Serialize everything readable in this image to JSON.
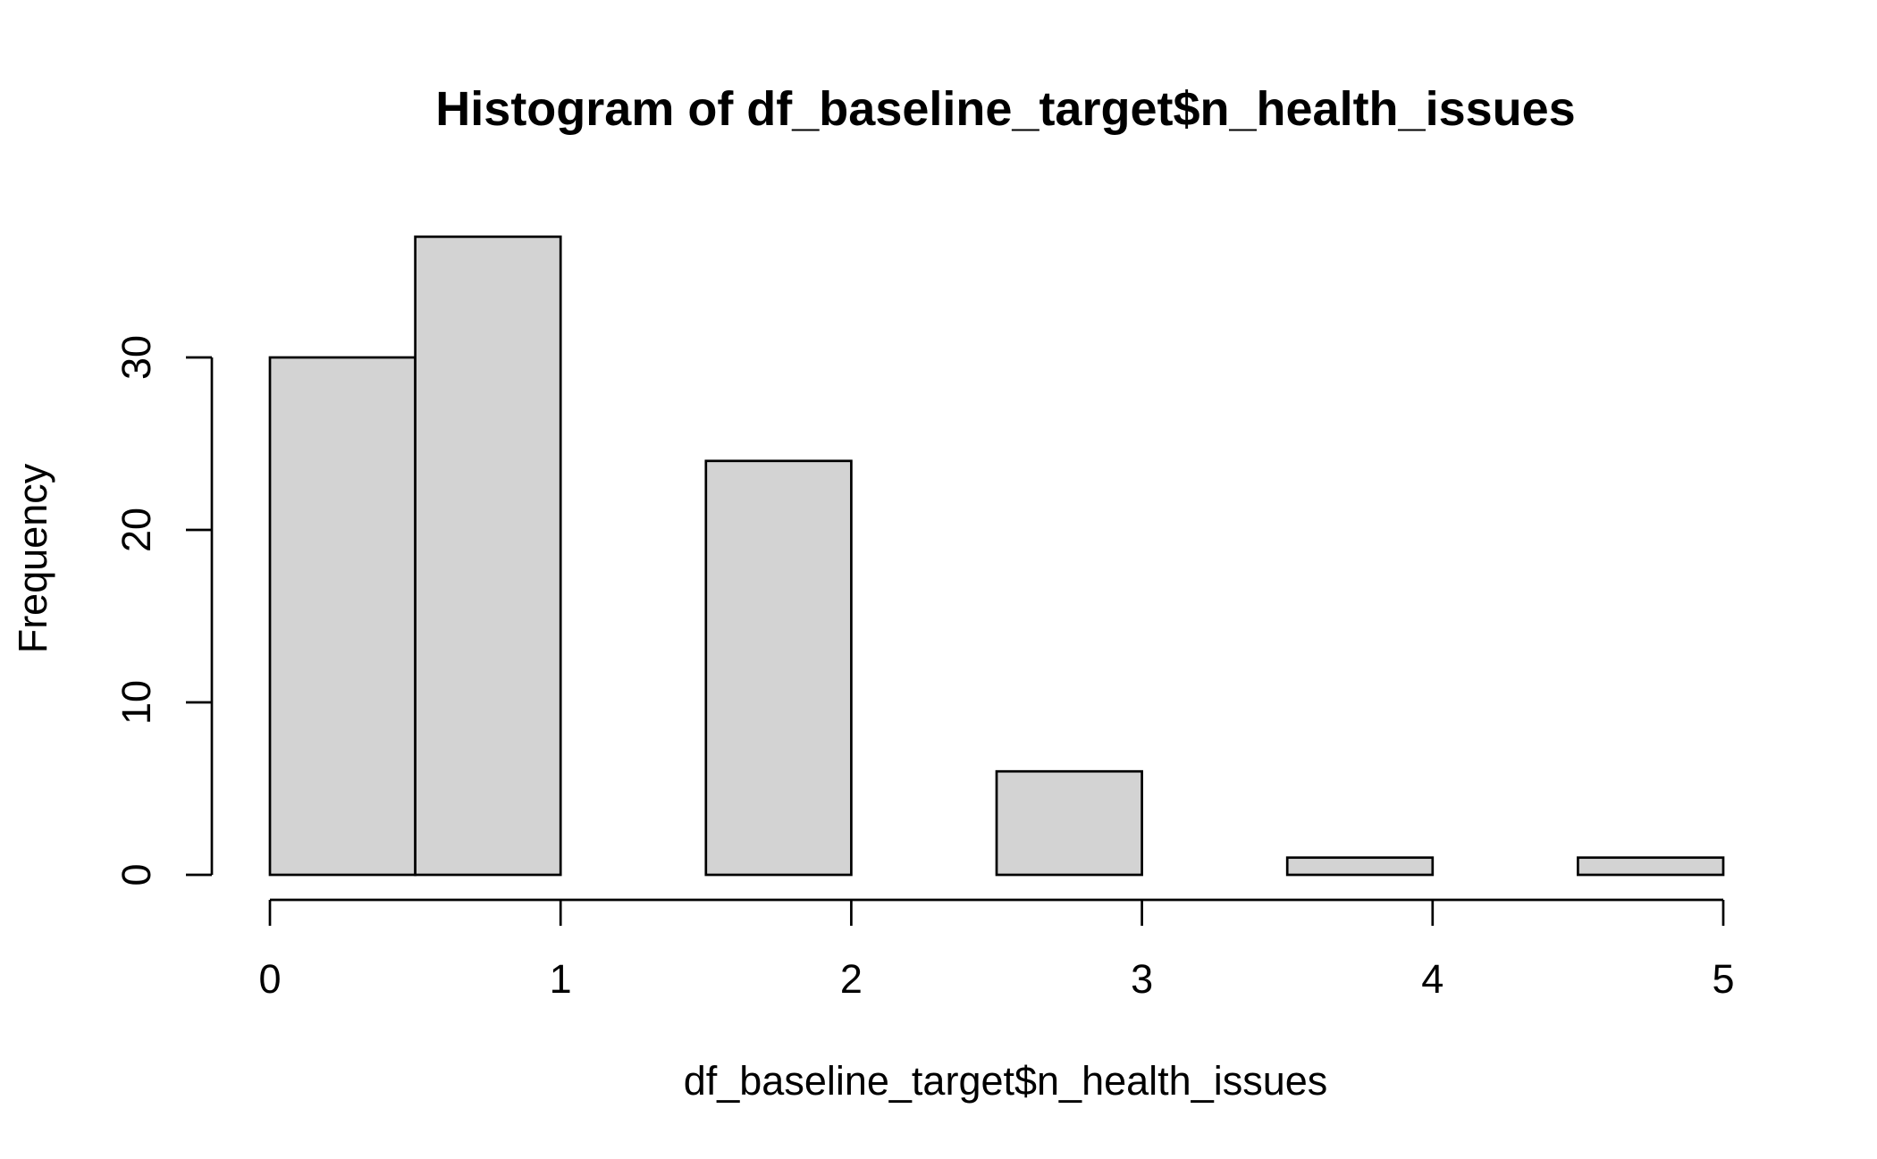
{
  "chart_data": {
    "type": "bar",
    "title": "Histogram of df_baseline_target$n_health_issues",
    "xlabel": "df_baseline_target$n_health_issues",
    "ylabel": "Frequency",
    "bins": [
      {
        "from": 0.0,
        "to": 0.5,
        "count": 30
      },
      {
        "from": 0.5,
        "to": 1.0,
        "count": 37
      },
      {
        "from": 1.0,
        "to": 1.5,
        "count": 0
      },
      {
        "from": 1.5,
        "to": 2.0,
        "count": 24
      },
      {
        "from": 2.0,
        "to": 2.5,
        "count": 0
      },
      {
        "from": 2.5,
        "to": 3.0,
        "count": 6
      },
      {
        "from": 3.0,
        "to": 3.5,
        "count": 0
      },
      {
        "from": 3.5,
        "to": 4.0,
        "count": 1
      },
      {
        "from": 4.0,
        "to": 4.5,
        "count": 0
      },
      {
        "from": 4.5,
        "to": 5.0,
        "count": 1
      }
    ],
    "x_ticks": [
      0,
      1,
      2,
      3,
      4,
      5
    ],
    "y_ticks": [
      0,
      10,
      20,
      30
    ],
    "xlim": [
      0,
      5
    ],
    "ylim": [
      0,
      37
    ],
    "grid": false,
    "colors": {
      "bar_fill": "#d3d3d3",
      "bar_stroke": "#000000",
      "background": "#ffffff"
    }
  }
}
